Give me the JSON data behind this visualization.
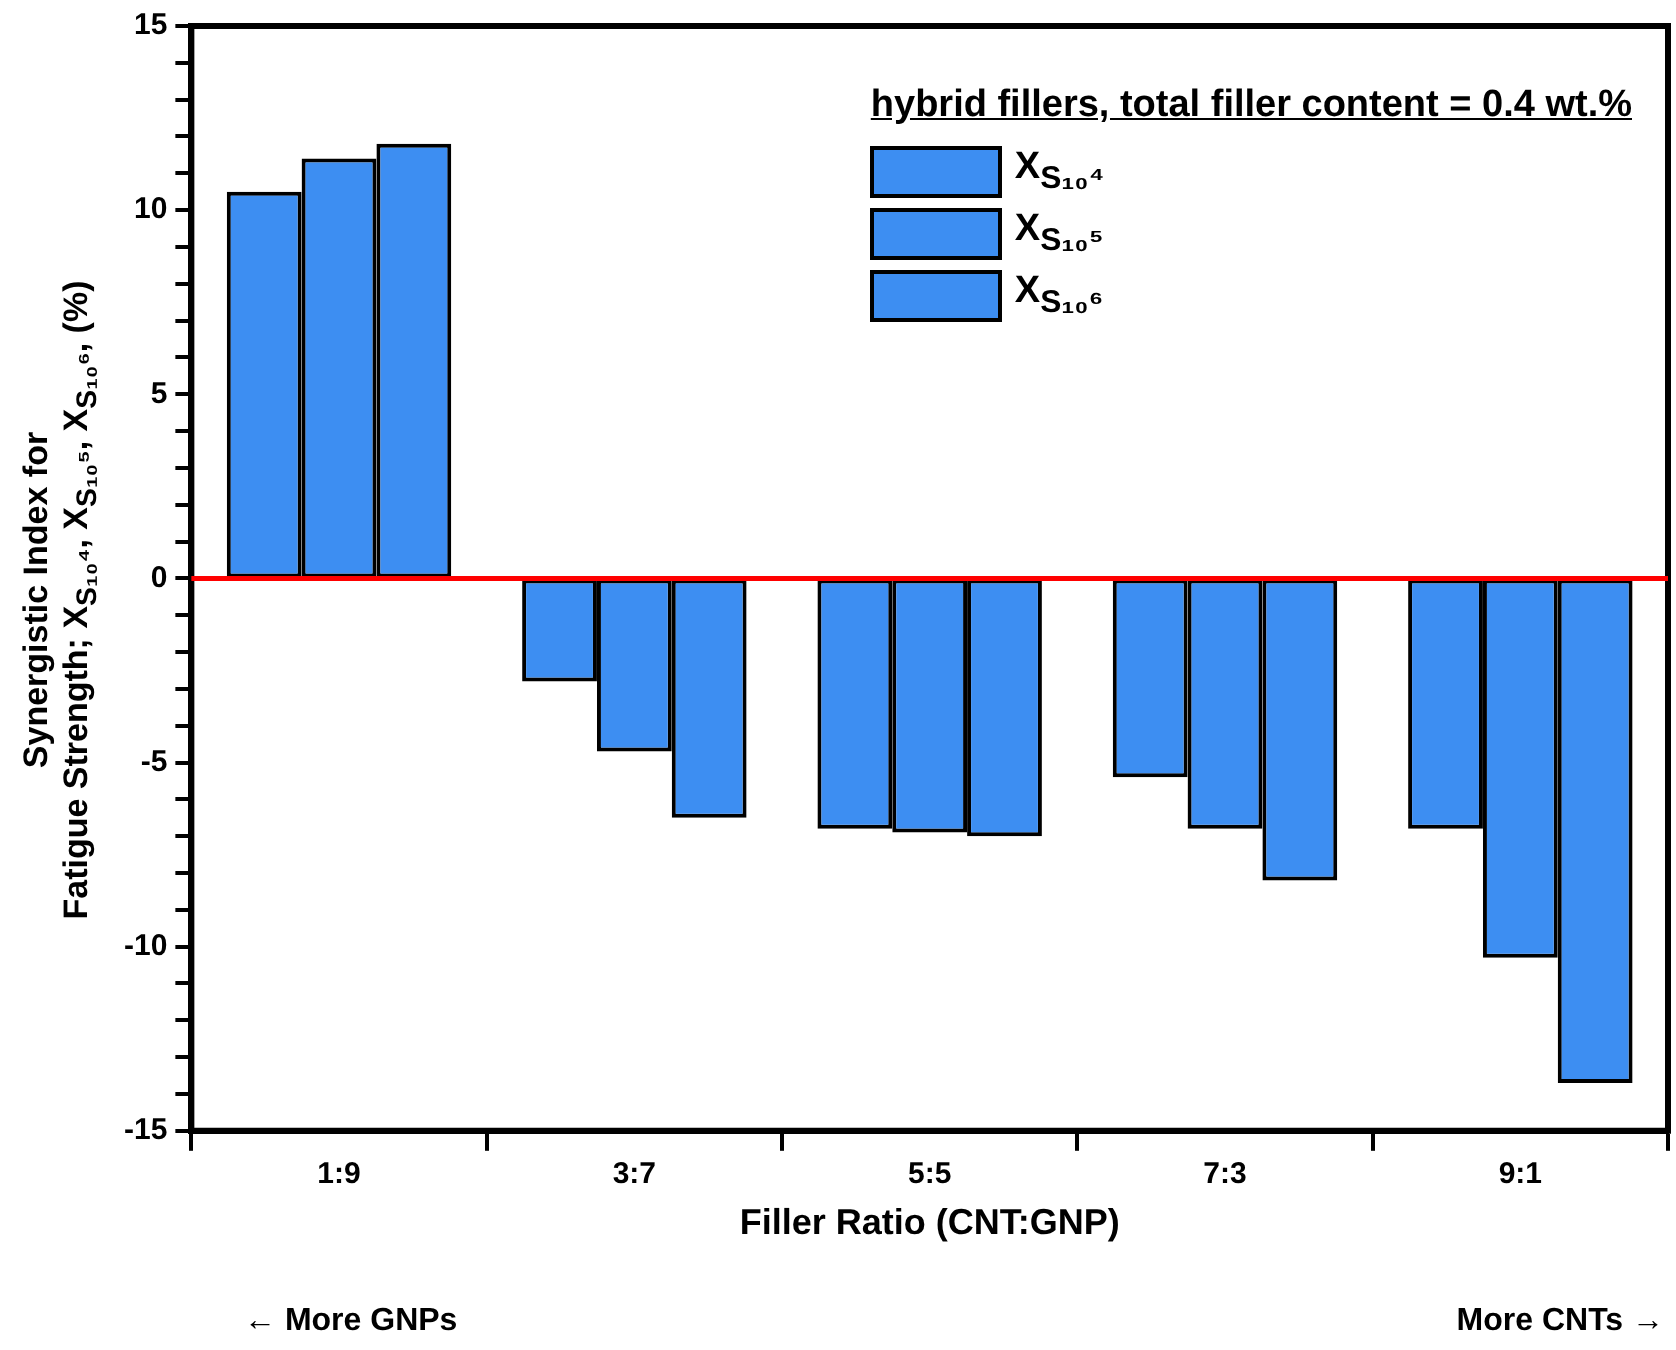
{
  "chart_data": {
    "type": "bar",
    "categories": [
      "1:9",
      "3:7",
      "5:5",
      "7:3",
      "9:1"
    ],
    "series": [
      {
        "name": "X$_{S₁₀⁴}$",
        "color": "#3d8ef2",
        "values": [
          10.5,
          -2.8,
          -6.8,
          -5.4,
          -6.8
        ]
      },
      {
        "name": "X$_{S₁₀⁵}$",
        "color": "#3d8ef2",
        "values": [
          11.4,
          -4.7,
          -6.9,
          -6.8,
          -10.3
        ]
      },
      {
        "name": "X$_{S₁₀⁶}$",
        "color": "#3d8ef2",
        "values": [
          11.8,
          -6.5,
          -7.0,
          -8.2,
          -13.7
        ]
      }
    ],
    "xlabel": "Filler Ratio (CNT:GNP)",
    "ylabel": "Synergistic Index for\nFatigue Strength; X$_{S₁₀⁴}$, X$_{S₁₀⁵}$, X$_{S₁₀⁶}$, (%)",
    "legend_title": "hybrid fillers, total filler content = 0.4 wt.%",
    "legend": "top right",
    "ylim": [
      -15,
      15
    ],
    "yticks": [
      -15,
      {
        "value": -14,
        "label": null
      },
      {
        "value": -13,
        "label": null
      },
      {
        "value": -12,
        "label": null
      },
      {
        "value": -11,
        "label": null
      },
      -10,
      {
        "value": -9,
        "label": null
      },
      {
        "value": -8,
        "label": null
      },
      {
        "value": -7,
        "label": null
      },
      {
        "value": -6,
        "label": null
      },
      -5,
      {
        "value": -4,
        "label": null
      },
      {
        "value": -3,
        "label": null
      },
      {
        "value": -2,
        "label": null
      },
      {
        "value": -1,
        "label": null
      },
      0,
      {
        "value": 1,
        "label": null
      },
      {
        "value": 2,
        "label": null
      },
      {
        "value": 3,
        "label": null
      },
      {
        "value": 4,
        "label": null
      },
      5,
      {
        "value": 6,
        "label": null
      },
      {
        "value": 7,
        "label": null
      },
      {
        "value": 8,
        "label": null
      },
      {
        "value": 9,
        "label": null
      },
      10,
      {
        "value": 11,
        "label": null
      },
      {
        "value": 12,
        "label": null
      },
      {
        "value": 13,
        "label": null
      },
      {
        "value": 14,
        "label": null
      },
      15
    ],
    "ref_lines": [
      {
        "axis": "y",
        "value": 0,
        "color": "#ff0000"
      }
    ],
    "annotations": [
      "← More GNPs",
      "More CNTs →"
    ],
    "grid": false
  }
}
